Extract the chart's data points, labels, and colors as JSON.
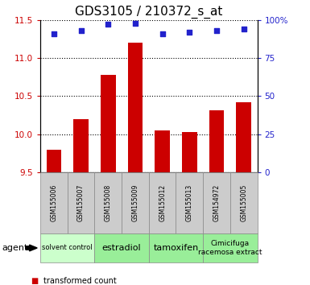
{
  "title": "GDS3105 / 210372_s_at",
  "samples": [
    "GSM155006",
    "GSM155007",
    "GSM155008",
    "GSM155009",
    "GSM155012",
    "GSM155013",
    "GSM154972",
    "GSM155005"
  ],
  "transformed_counts": [
    9.8,
    10.2,
    10.78,
    11.2,
    10.05,
    10.03,
    10.32,
    10.42
  ],
  "percentile_ranks": [
    91,
    93,
    97,
    98,
    91,
    92,
    93,
    94
  ],
  "ylim_left": [
    9.5,
    11.5
  ],
  "ylim_right": [
    0,
    100
  ],
  "yticks_left": [
    9.5,
    10.0,
    10.5,
    11.0,
    11.5
  ],
  "yticks_right": [
    0,
    25,
    50,
    75,
    100
  ],
  "bar_color": "#cc0000",
  "dot_color": "#2222cc",
  "tick_bg_color": "#cccccc",
  "title_fontsize": 11,
  "axis_label_color_left": "#cc0000",
  "axis_label_color_right": "#2222cc",
  "groups_def": [
    {
      "label": "solvent control",
      "start": 0,
      "end": 1,
      "color": "#ccffcc",
      "fontsize": 6
    },
    {
      "label": "estradiol",
      "start": 2,
      "end": 3,
      "color": "#99ee99",
      "fontsize": 8
    },
    {
      "label": "tamoxifen",
      "start": 4,
      "end": 5,
      "color": "#99ee99",
      "fontsize": 8
    },
    {
      "label": "Cimicifuga\nracemosa extract",
      "start": 6,
      "end": 7,
      "color": "#99ee99",
      "fontsize": 6.5
    }
  ]
}
